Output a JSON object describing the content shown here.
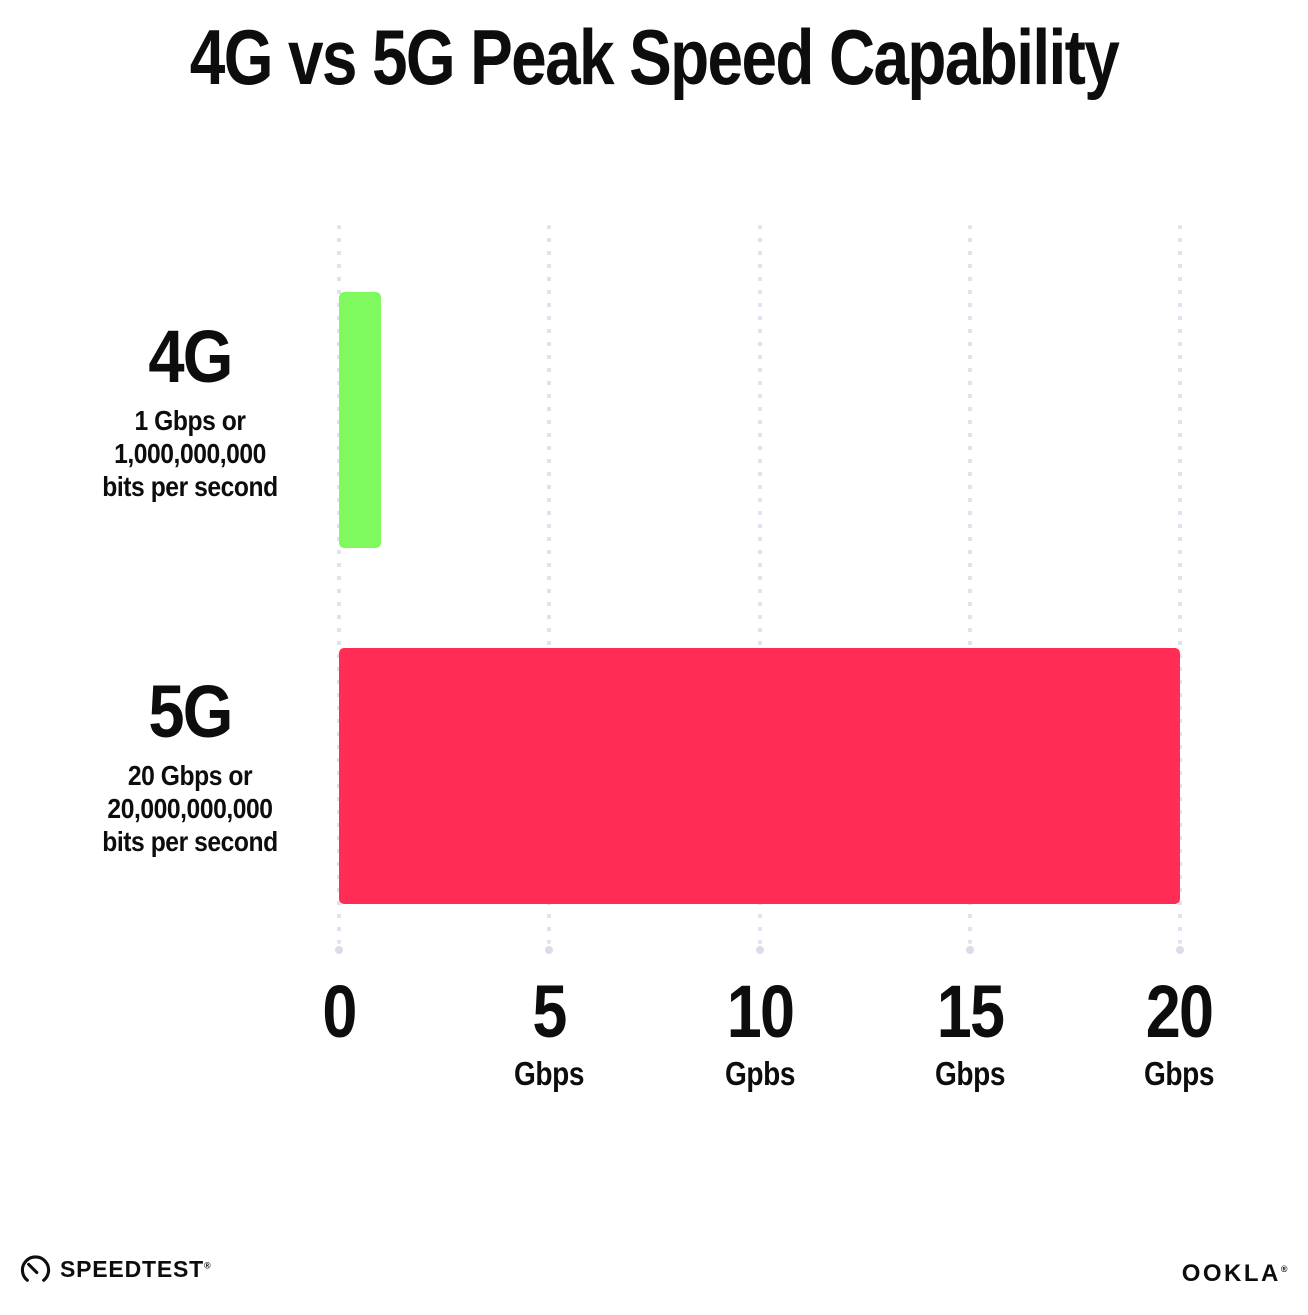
{
  "title": "4G vs 5G Peak Speed Capability",
  "chart_data": {
    "type": "bar",
    "orientation": "horizontal",
    "title": "4G vs 5G Peak Speed Capability",
    "categories": [
      "4G",
      "5G"
    ],
    "values": [
      1,
      20
    ],
    "unit": "Gbps",
    "xlim": [
      0,
      20
    ],
    "x_tick_values": [
      0,
      5,
      10,
      15,
      20
    ],
    "bar_colors": [
      "#7ffa5e",
      "#ff2d55"
    ],
    "grid": "vertical-dotted",
    "annotations": [
      "4G: 1 Gbps or 1,000,000,000 bits per second",
      "5G: 20 Gbps or 20,000,000,000 bits per second"
    ]
  },
  "rows": [
    {
      "label": "4G",
      "desc_lines": [
        "1 Gbps or",
        "1,000,000,000",
        "bits per second"
      ]
    },
    {
      "label": "5G",
      "desc_lines": [
        "20 Gbps or",
        "20,000,000,000",
        "bits per second"
      ]
    }
  ],
  "x_axis": {
    "ticks": [
      {
        "num": "0",
        "unit": ""
      },
      {
        "num": "5",
        "unit": "Gbps"
      },
      {
        "num": "10",
        "unit": "Gpbs"
      },
      {
        "num": "15",
        "unit": "Gbps"
      },
      {
        "num": "20",
        "unit": "Gbps"
      }
    ]
  },
  "footer": {
    "speedtest": "SPEEDTEST",
    "speedtest_mark": "®",
    "ookla": "OOKLA",
    "ookla_mark": "®"
  },
  "colors": {
    "bar_4g": "#7ffa5e",
    "bar_5g": "#ff2d55",
    "gridline": "#e2e2ee",
    "text": "#0d0d0d",
    "background": "#ffffff"
  }
}
